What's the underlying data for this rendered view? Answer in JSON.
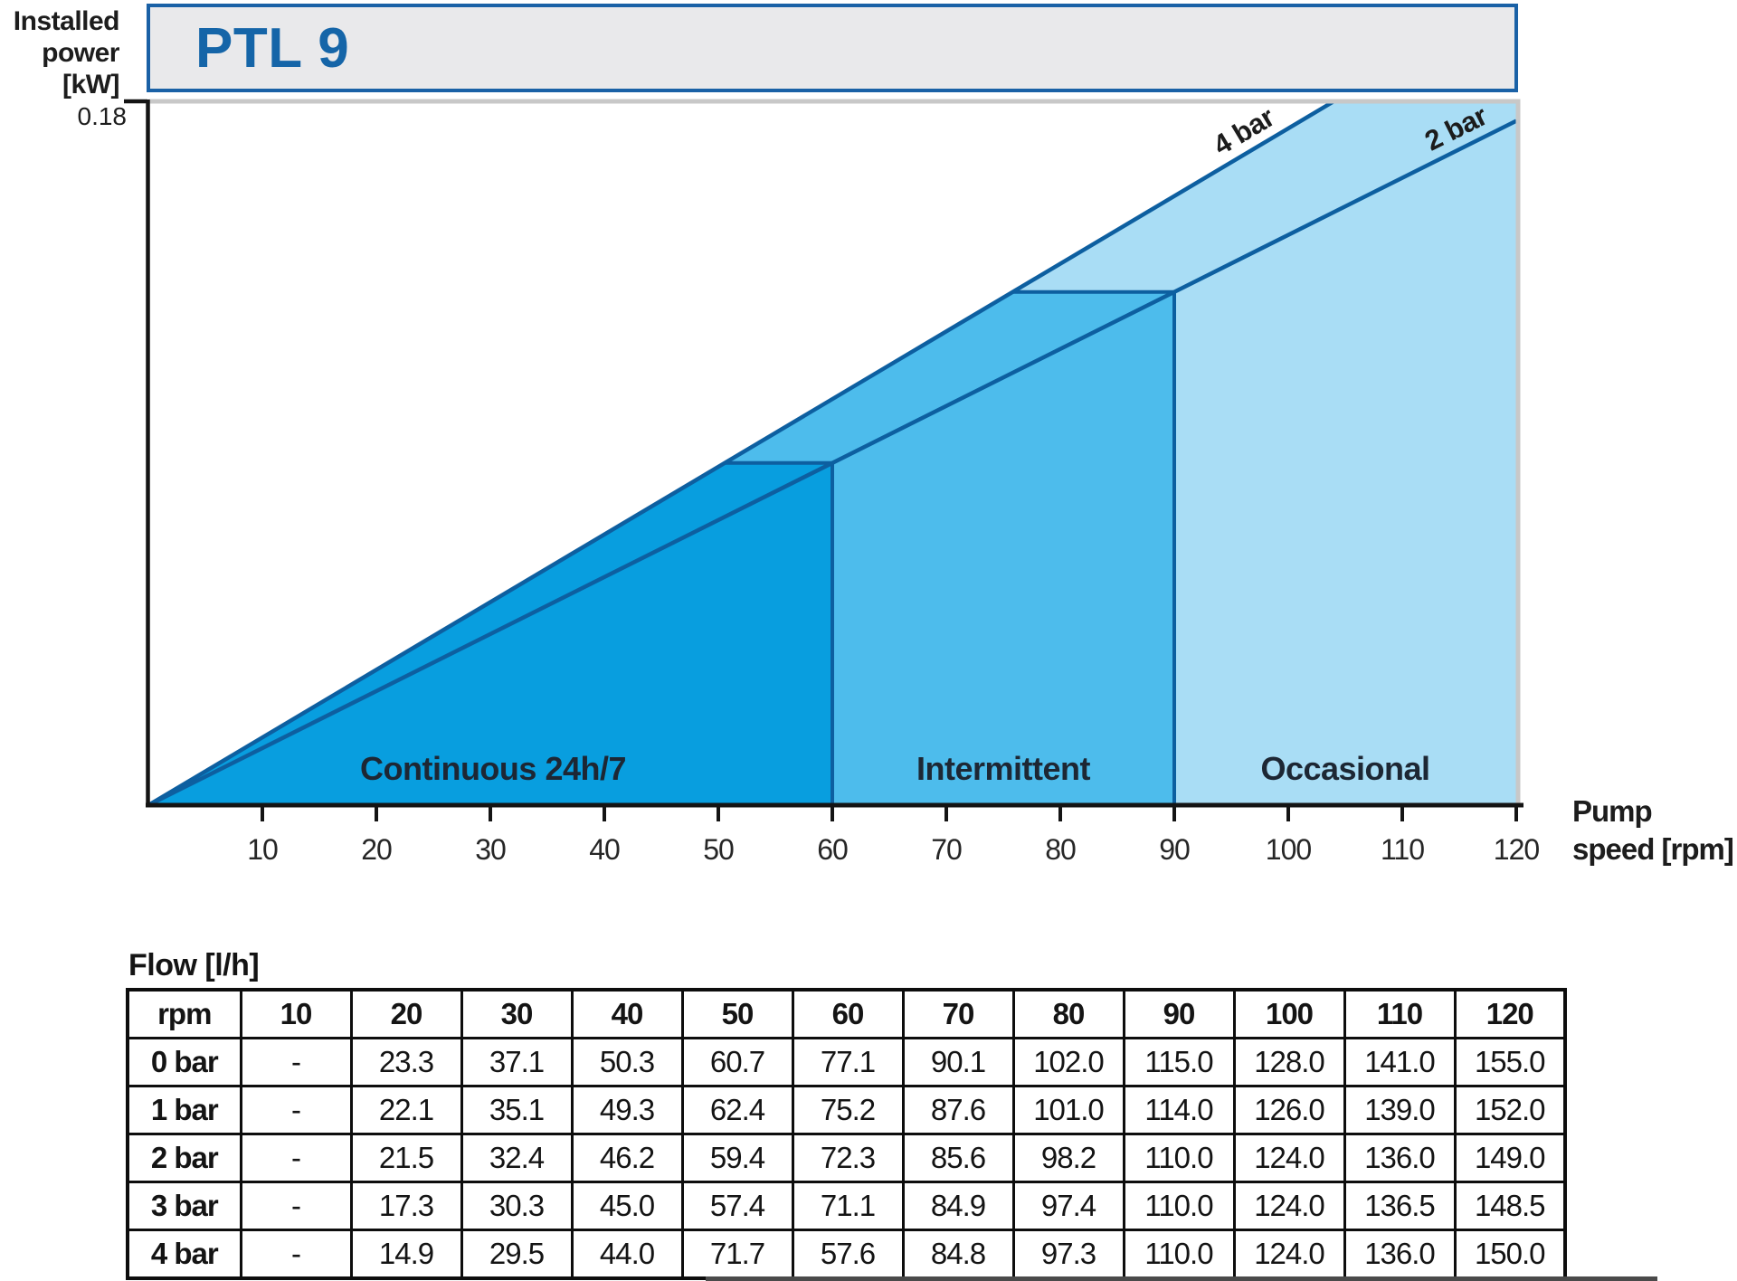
{
  "header": {
    "title": "PTL 9"
  },
  "y_axis": {
    "label_lines": [
      "Installed",
      "power",
      "[kW]"
    ],
    "top_tick": "0.18"
  },
  "x_axis": {
    "label_lines": [
      "Pump",
      "speed [rpm]"
    ]
  },
  "chart_data": {
    "type": "area",
    "title": "PTL 9",
    "xlabel": "Pump speed [rpm]",
    "ylabel": "Installed power [kW]",
    "xlim": [
      0,
      120
    ],
    "ylim": [
      0,
      0.18
    ],
    "x_ticks": [
      10,
      20,
      30,
      40,
      50,
      60,
      70,
      80,
      90,
      100,
      110,
      120
    ],
    "y_ticks": [
      0.18
    ],
    "grid": false,
    "line_color": "#0D5FA0",
    "lines": [
      {
        "name": "4 bar",
        "points": [
          [
            0,
            0
          ],
          [
            104,
            0.18
          ]
        ]
      },
      {
        "name": "2 bar",
        "points": [
          [
            0,
            0
          ],
          [
            120,
            0.175
          ]
        ]
      }
    ],
    "regions": [
      {
        "label": "Continuous 24h/7",
        "x_range": [
          0,
          60
        ],
        "color": "#089EDF"
      },
      {
        "label": "Intermittent",
        "x_range": [
          60,
          90
        ],
        "color": "#4DBCEC"
      },
      {
        "label": "Occasional",
        "x_range": [
          90,
          120
        ],
        "color": "#A9DDF5"
      }
    ]
  },
  "flow_table": {
    "title": "Flow [l/h]",
    "columns": [
      "rpm",
      "10",
      "20",
      "30",
      "40",
      "50",
      "60",
      "70",
      "80",
      "90",
      "100",
      "110",
      "120"
    ],
    "rows": [
      {
        "label": "0 bar",
        "values": [
          "-",
          "23.3",
          "37.1",
          "50.3",
          "60.7",
          "77.1",
          "90.1",
          "102.0",
          "115.0",
          "128.0",
          "141.0",
          "155.0"
        ]
      },
      {
        "label": "1 bar",
        "values": [
          "-",
          "22.1",
          "35.1",
          "49.3",
          "62.4",
          "75.2",
          "87.6",
          "101.0",
          "114.0",
          "126.0",
          "139.0",
          "152.0"
        ]
      },
      {
        "label": "2 bar",
        "values": [
          "-",
          "21.5",
          "32.4",
          "46.2",
          "59.4",
          "72.3",
          "85.6",
          "98.2",
          "110.0",
          "124.0",
          "136.0",
          "149.0"
        ]
      },
      {
        "label": "3 bar",
        "values": [
          "-",
          "17.3",
          "30.3",
          "45.0",
          "57.4",
          "71.1",
          "84.9",
          "97.4",
          "110.0",
          "124.0",
          "136.5",
          "148.5"
        ]
      },
      {
        "label": "4 bar",
        "values": [
          "-",
          "14.9",
          "29.5",
          "44.0",
          "71.7",
          "57.6",
          "84.8",
          "97.3",
          "110.0",
          "124.0",
          "136.0",
          "150.0"
        ]
      }
    ]
  },
  "colors": {
    "header_bg": "#E9E9EB",
    "header_border": "#1A61A6",
    "header_text": "#1565A8",
    "region_dark": "#089EDF",
    "region_medium": "#4DBCEC",
    "region_light": "#A9DDF5",
    "pressure_line": "#0D5FA0",
    "plot_border_silver": "#C8C8C8",
    "axis_black": "#141414"
  }
}
